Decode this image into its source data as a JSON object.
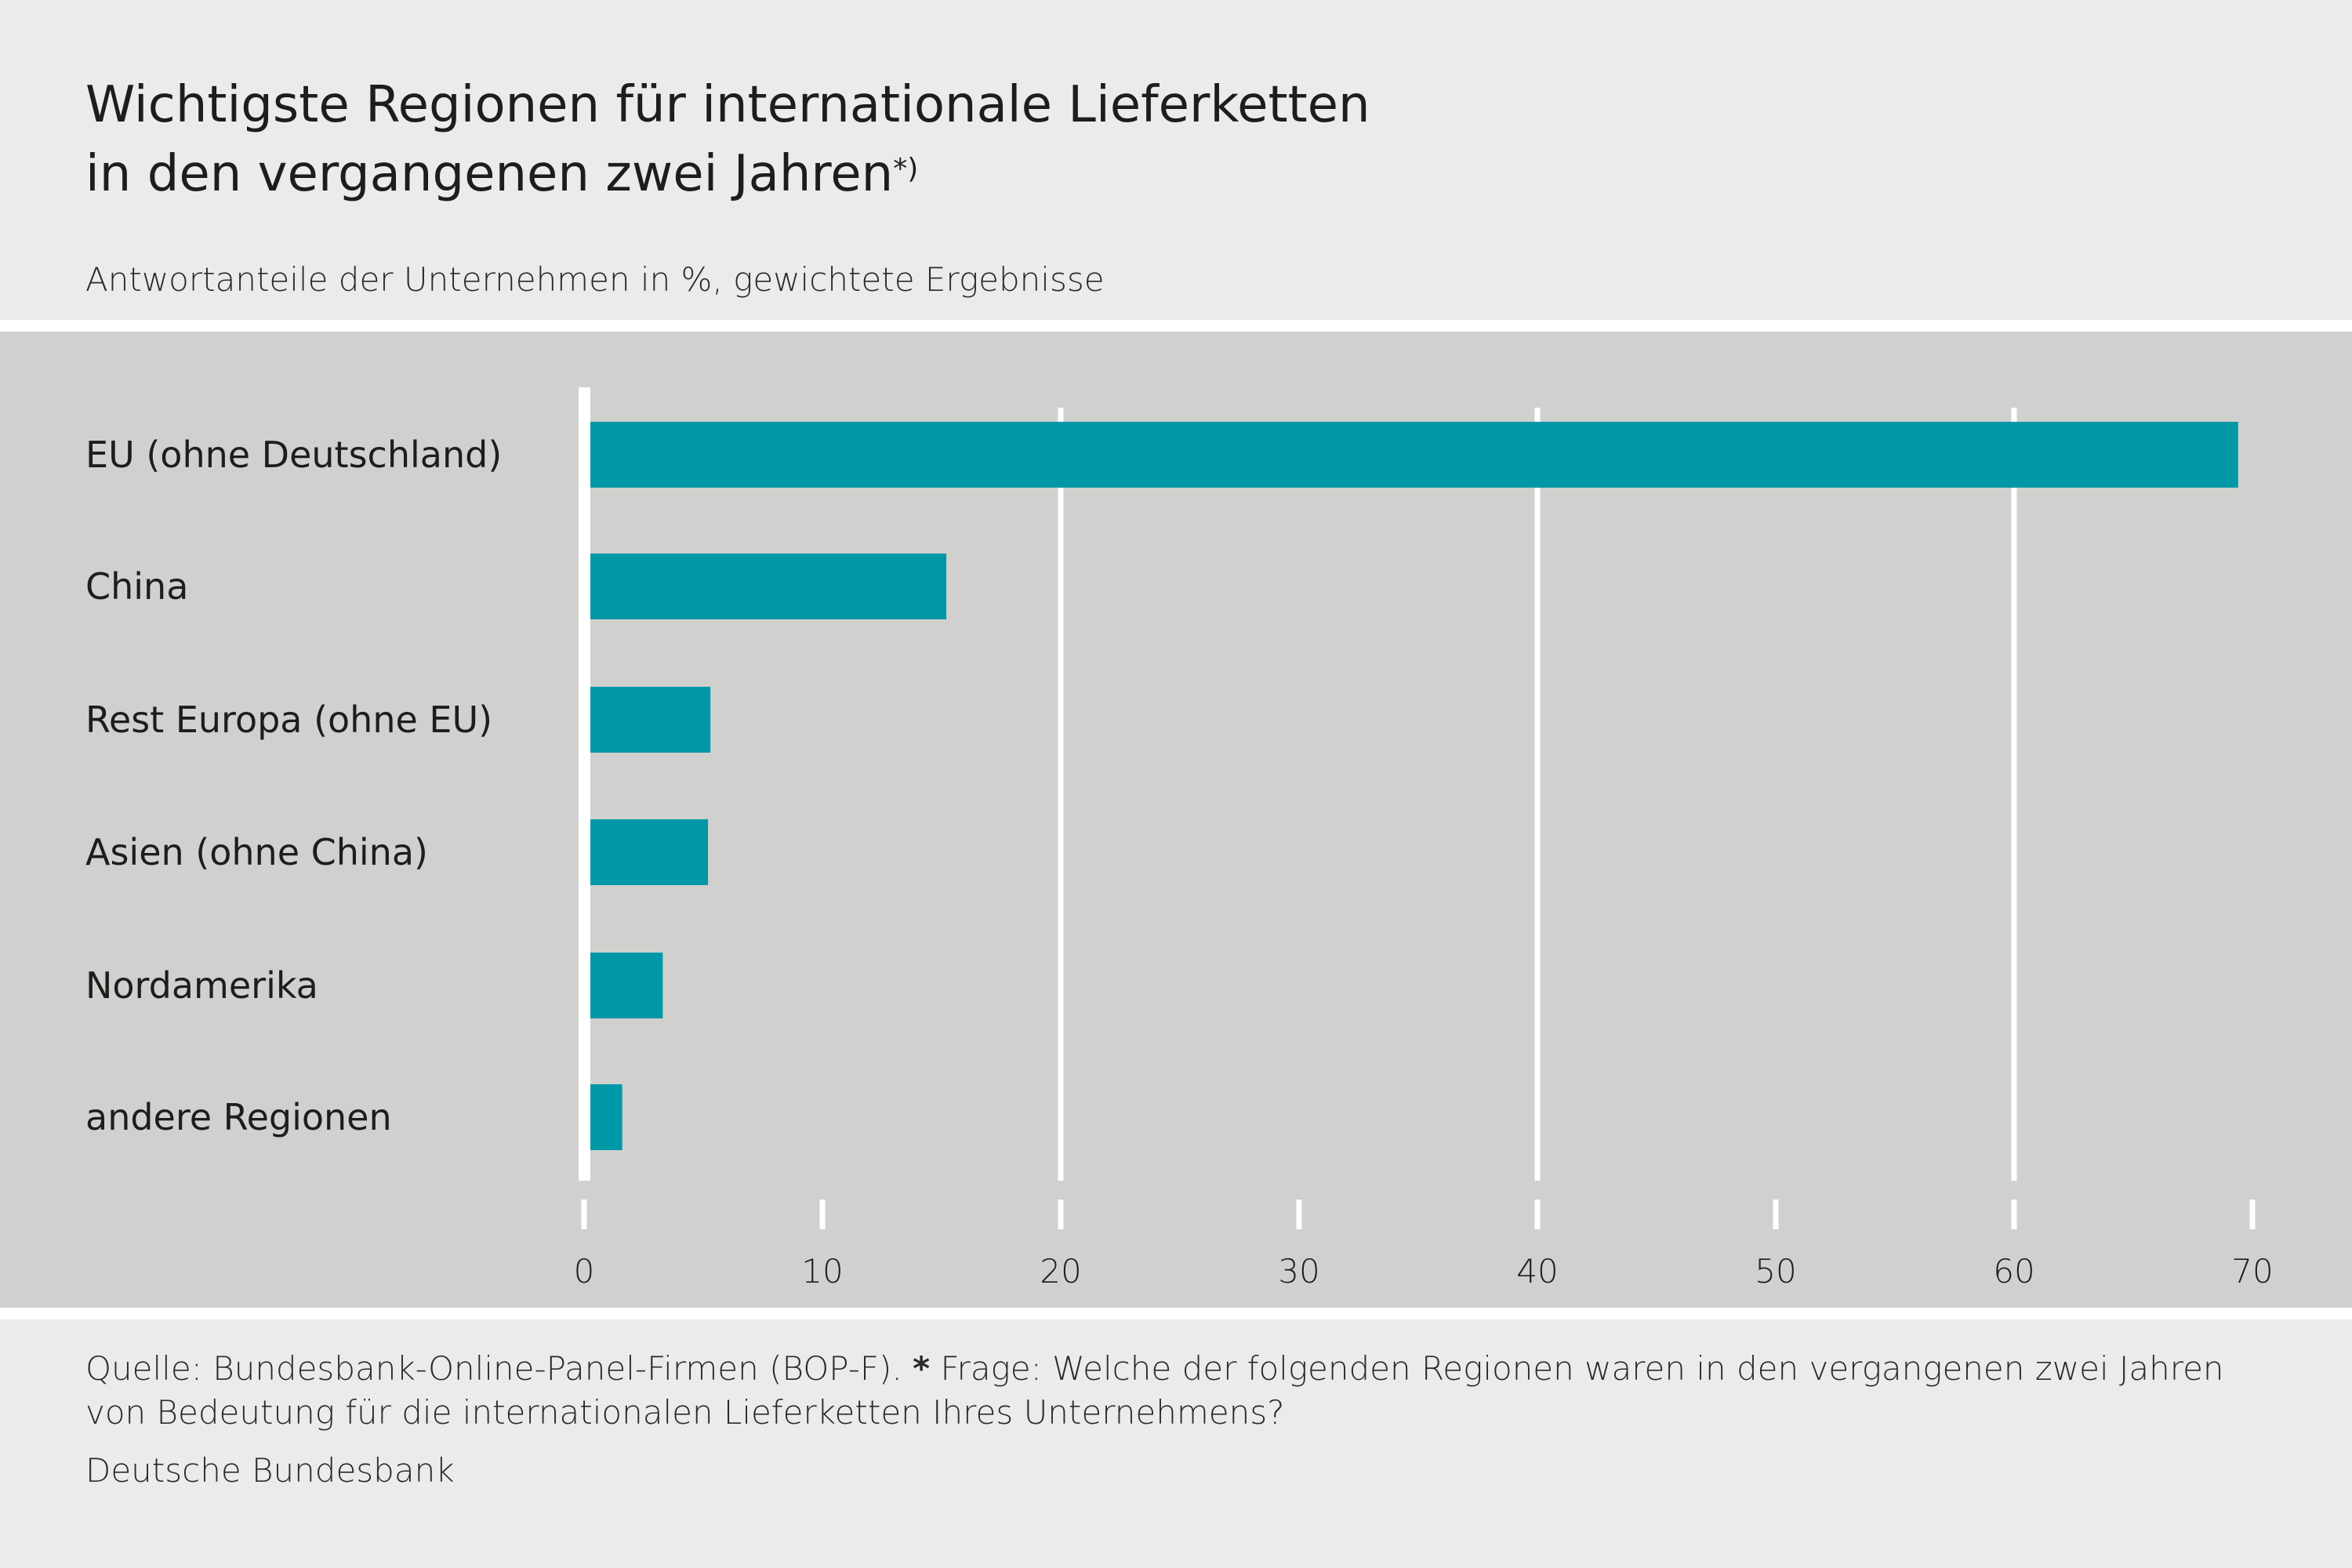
{
  "header": {
    "title_line1": "Wichtigste Regionen für internationale Lieferketten",
    "title_line2": "in den vergangenen zwei Jahren",
    "title_footnote_mark": "*)",
    "subtitle": "Antwortanteile der Unternehmen in %, gewichtete Ergebnisse"
  },
  "chart_data": {
    "type": "bar",
    "orientation": "horizontal",
    "categories": [
      "EU (ohne Deutschland)",
      "China",
      "Rest Europa (ohne EU)",
      "Asien (ohne China)",
      "Nordamerika",
      "andere Regionen"
    ],
    "values": [
      69.4,
      15.2,
      5.3,
      5.2,
      3.3,
      1.6
    ],
    "xlim": [
      0,
      70
    ],
    "xticks": [
      "0",
      "10",
      "20",
      "30",
      "40",
      "50",
      "60",
      "70"
    ],
    "gridlines": [
      20,
      40,
      60
    ],
    "grid": true,
    "color": "#0098a6",
    "xlabel": "",
    "ylabel": ""
  },
  "footer": {
    "source_line1_a": "Quelle: Bundesbank-Online-Panel-Firmen (BOP-F).",
    "source_star": "*",
    "source_line1_b": "Frage: Welche der folgenden Regionen waren in den vergangenen zwei Jahren",
    "source_line2": "von Bedeutung für die internationalen Lieferketten Ihres Unternehmens?",
    "publisher": "Deutsche Bundesbank"
  }
}
